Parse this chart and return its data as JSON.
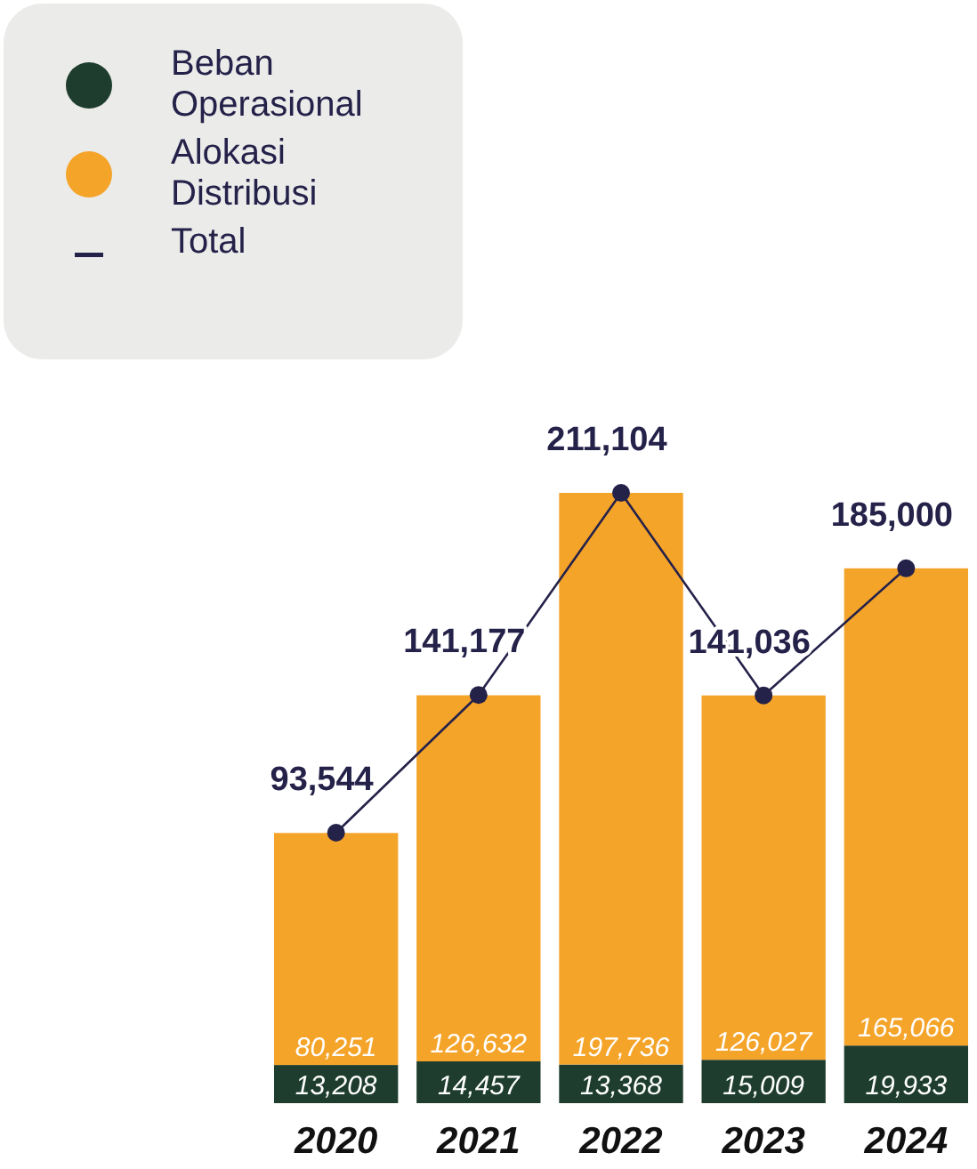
{
  "chart_data": {
    "type": "bar",
    "stacked": true,
    "categories": [
      "2020",
      "2021",
      "2022",
      "2023",
      "2024"
    ],
    "series": [
      {
        "name": "Beban Operasional",
        "color": "#1e3d2f",
        "values": [
          13208,
          14457,
          13368,
          15009,
          19933
        ],
        "value_labels": [
          "13,208",
          "14,457",
          "13,368",
          "15,009",
          "19,933"
        ]
      },
      {
        "name": "Alokasi Distribusi",
        "color": "#f5a42a",
        "values": [
          80251,
          126632,
          197736,
          126027,
          165066
        ],
        "value_labels": [
          "80,251",
          "126,632",
          "197,736",
          "126,027",
          "165,066"
        ]
      },
      {
        "name": "Total",
        "type": "line",
        "color": "#25224a",
        "values": [
          93544,
          141177,
          211104,
          141036,
          185000
        ],
        "value_labels": [
          "93,544",
          "141,177",
          "211,104",
          "141,036",
          "185,000"
        ]
      }
    ],
    "marker": "circle",
    "legend": "top left"
  }
}
